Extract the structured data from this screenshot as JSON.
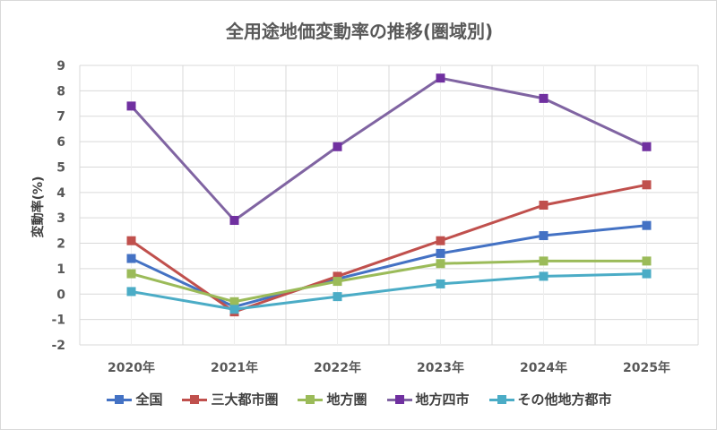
{
  "chart_data": {
    "type": "line",
    "title": "全用途地価変動率の推移(圏域別)",
    "xlabel": "",
    "ylabel": "変動率(%)",
    "categories": [
      "2020年",
      "2021年",
      "2022年",
      "2023年",
      "2024年",
      "2025年"
    ],
    "ylim": [
      -2,
      9
    ],
    "yticks": [
      -2,
      -1,
      0,
      1,
      2,
      3,
      4,
      5,
      6,
      7,
      8,
      9
    ],
    "grid": true,
    "legend": "bottom",
    "series": [
      {
        "name": "全国",
        "color": "#4472c4",
        "values": [
          1.4,
          -0.5,
          0.6,
          1.6,
          2.3,
          2.7
        ]
      },
      {
        "name": "三大都市圏",
        "color": "#c0504d",
        "values": [
          2.1,
          -0.7,
          0.7,
          2.1,
          3.5,
          4.3
        ]
      },
      {
        "name": "地方圏",
        "color": "#9bbb59",
        "values": [
          0.8,
          -0.3,
          0.5,
          1.2,
          1.3,
          1.3
        ]
      },
      {
        "name": "地方四市",
        "color": "#7030a0",
        "marker_color": "#7030a0",
        "line_color": "#8064a2",
        "values": [
          7.4,
          2.9,
          5.8,
          8.5,
          7.7,
          5.8
        ]
      },
      {
        "name": "その他地方都市",
        "color": "#4bacc6",
        "values": [
          0.1,
          -0.6,
          -0.1,
          0.4,
          0.7,
          0.8
        ]
      }
    ]
  }
}
